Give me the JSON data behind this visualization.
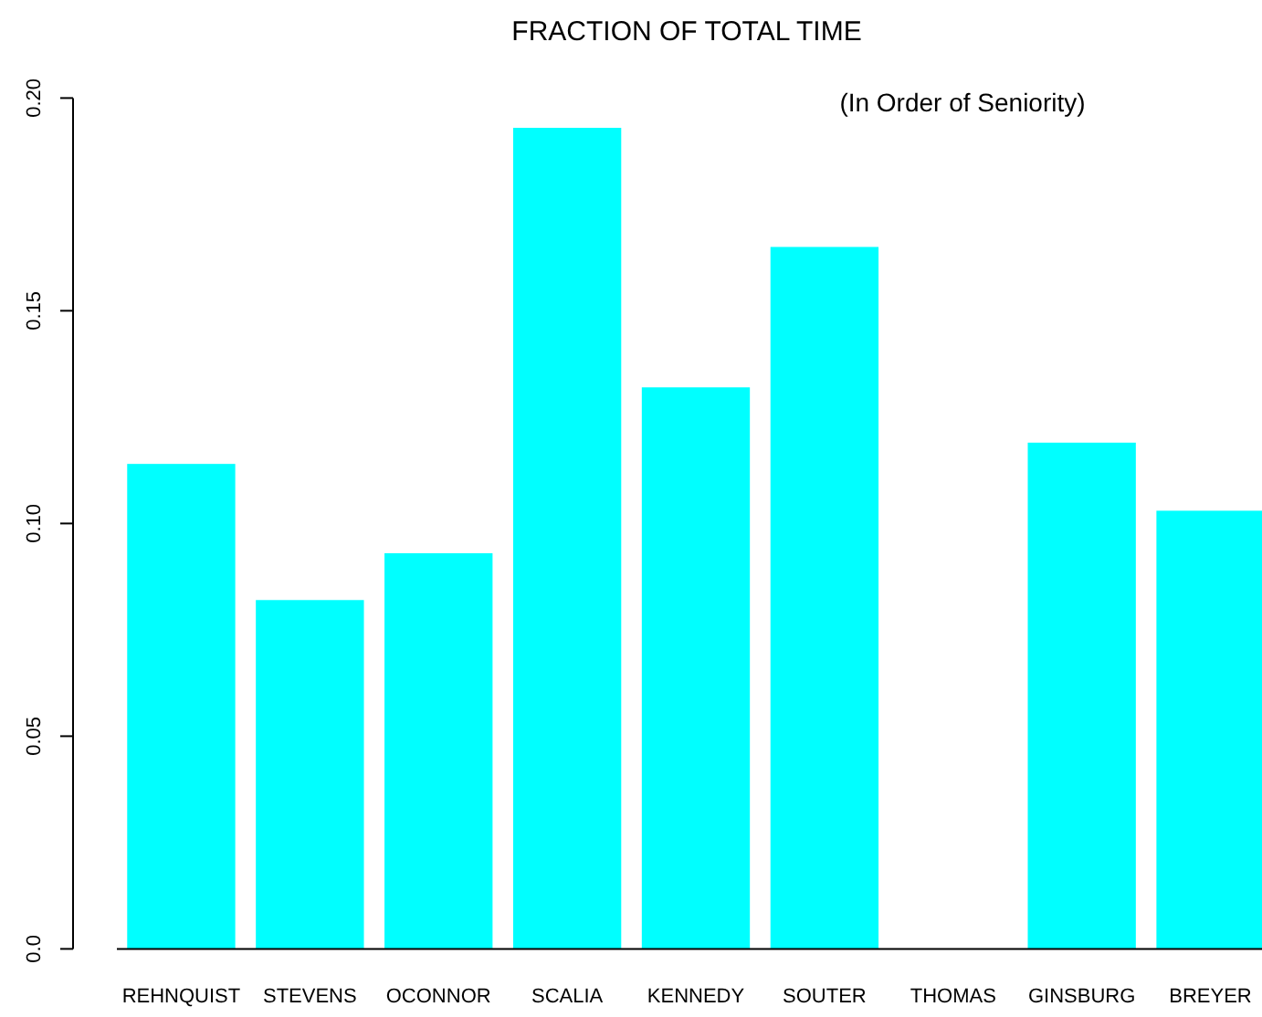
{
  "chart_data": {
    "type": "bar",
    "title": "FRACTION OF TOTAL TIME",
    "annotations": [
      "(In Order of Seniority)"
    ],
    "categories": [
      "REHNQUIST",
      "STEVENS",
      "OCONNOR",
      "SCALIA",
      "KENNEDY",
      "SOUTER",
      "THOMAS",
      "GINSBURG",
      "BREYER"
    ],
    "values": [
      0.114,
      0.082,
      0.093,
      0.193,
      0.132,
      0.165,
      0,
      0.119,
      0.103
    ],
    "color": "#00ffff",
    "ylim": [
      0,
      0.2
    ],
    "yticks": [
      {
        "value": 0,
        "label": "0.0"
      },
      {
        "value": 0.05,
        "label": "0.05"
      },
      {
        "value": 0.1,
        "label": "0.10"
      },
      {
        "value": 0.15,
        "label": "0.15"
      },
      {
        "value": 0.2,
        "label": "0.20"
      }
    ],
    "grid": false
  }
}
